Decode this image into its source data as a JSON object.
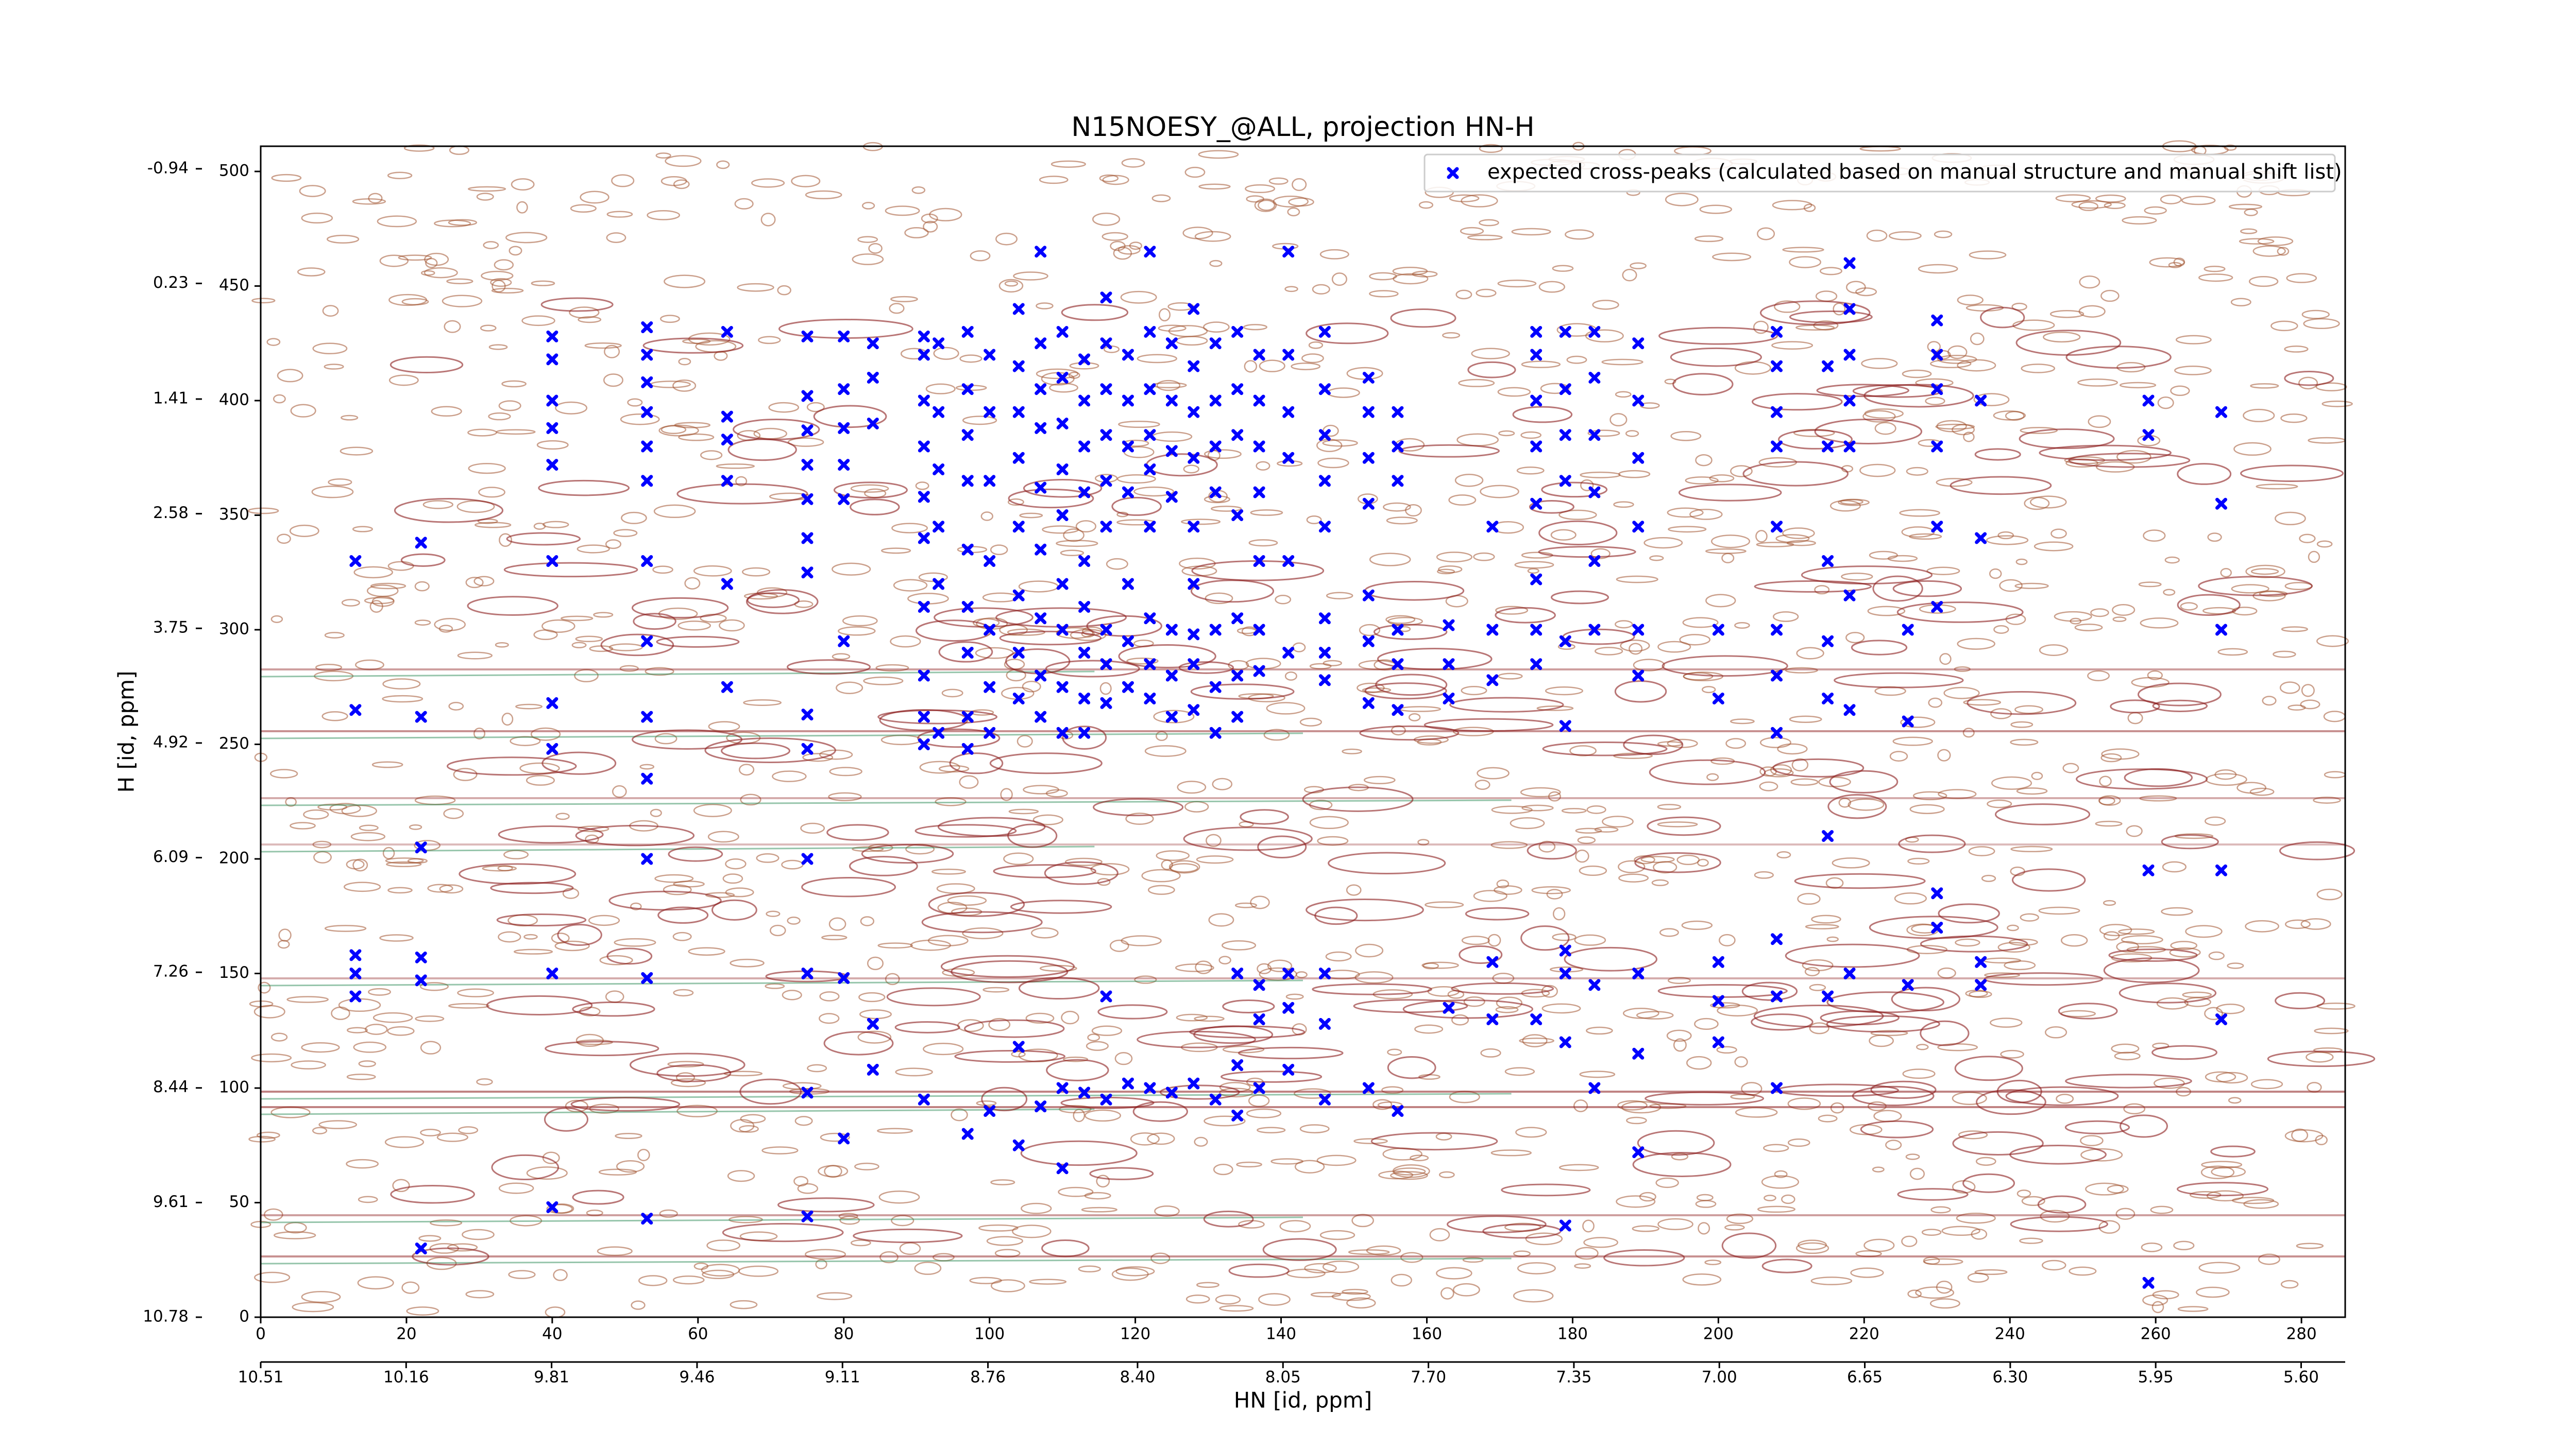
{
  "chart_data": {
    "type": "scatter",
    "title": "N15NOESY_@ALL, projection HN-H",
    "xlabel": "HN [id, ppm]",
    "ylabel": "H [id, ppm]",
    "xlim": [
      0,
      286
    ],
    "ylim": [
      0,
      511
    ],
    "xticks": [
      0,
      20,
      40,
      60,
      80,
      100,
      120,
      140,
      160,
      180,
      200,
      220,
      240,
      260,
      280
    ],
    "yticks": [
      0,
      50,
      100,
      150,
      200,
      250,
      300,
      350,
      400,
      450,
      500
    ],
    "x2lim": [
      10.51,
      5.494
    ],
    "x2ticks": [
      10.51,
      10.16,
      9.81,
      9.46,
      9.11,
      8.76,
      {
        "value": 8.4,
        "label": "8.40"
      },
      8.05,
      {
        "value": 7.7,
        "label": "7.70"
      },
      7.35,
      {
        "value": 7.0,
        "label": "7.00"
      },
      6.65,
      {
        "value": 6.3,
        "label": "6.30"
      },
      5.95,
      {
        "value": 5.6,
        "label": "5.60"
      }
    ],
    "y2lim": [
      10.78,
      -1.17
    ],
    "y2ticks": [
      10.78,
      9.61,
      8.44,
      7.26,
      6.09,
      4.92,
      3.75,
      2.58,
      1.41,
      0.23,
      -0.94
    ],
    "legend": "upper right",
    "series": [
      {
        "name": "expected cross-peaks (calculated based on manual structure and manual shift list)",
        "color": "#0000ff",
        "x": [
          13,
          13,
          13,
          13,
          13,
          22,
          22,
          22,
          22,
          22,
          22,
          40,
          40,
          40,
          40,
          40,
          40,
          40,
          40,
          40,
          40,
          53,
          53,
          53,
          53,
          53,
          53,
          53,
          53,
          53,
          53,
          53,
          53,
          53,
          64,
          64,
          64,
          64,
          64,
          64,
          75,
          75,
          75,
          75,
          75,
          75,
          75,
          75,
          75,
          75,
          75,
          75,
          75,
          80,
          80,
          80,
          80,
          80,
          80,
          80,
          80,
          84,
          84,
          84,
          84,
          84,
          91,
          91,
          91,
          91,
          91,
          91,
          91,
          91,
          91,
          91,
          91,
          93,
          93,
          93,
          93,
          93,
          93,
          97,
          97,
          97,
          97,
          97,
          97,
          97,
          97,
          97,
          97,
          100,
          100,
          100,
          100,
          100,
          100,
          100,
          100,
          104,
          104,
          104,
          104,
          104,
          104,
          104,
          104,
          104,
          104,
          107,
          107,
          107,
          107,
          107,
          107,
          107,
          107,
          107,
          107,
          110,
          110,
          110,
          110,
          110,
          110,
          110,
          110,
          110,
          110,
          110,
          113,
          113,
          113,
          113,
          113,
          113,
          113,
          113,
          113,
          113,
          116,
          116,
          116,
          116,
          116,
          116,
          116,
          116,
          116,
          116,
          116,
          119,
          119,
          119,
          119,
          119,
          119,
          119,
          119,
          122,
          122,
          122,
          122,
          122,
          122,
          122,
          122,
          122,
          122,
          125,
          125,
          125,
          125,
          125,
          125,
          125,
          125,
          128,
          128,
          128,
          128,
          128,
          128,
          128,
          128,
          128,
          128,
          131,
          131,
          131,
          131,
          131,
          131,
          131,
          131,
          134,
          134,
          134,
          134,
          134,
          134,
          134,
          134,
          134,
          134,
          137,
          137,
          137,
          137,
          137,
          137,
          137,
          137,
          137,
          137,
          141,
          141,
          141,
          141,
          141,
          141,
          141,
          141,
          141,
          146,
          146,
          146,
          146,
          146,
          146,
          146,
          146,
          146,
          146,
          146,
          152,
          152,
          152,
          152,
          152,
          152,
          152,
          152,
          156,
          156,
          156,
          156,
          156,
          156,
          156,
          163,
          163,
          163,
          163,
          169,
          169,
          169,
          169,
          169,
          175,
          175,
          175,
          175,
          175,
          175,
          175,
          175,
          175,
          179,
          179,
          179,
          179,
          179,
          179,
          179,
          179,
          179,
          179,
          183,
          183,
          183,
          183,
          183,
          183,
          183,
          183,
          189,
          189,
          189,
          189,
          189,
          189,
          189,
          189,
          189,
          200,
          200,
          200,
          200,
          200,
          208,
          208,
          208,
          208,
          208,
          208,
          208,
          208,
          208,
          208,
          208,
          215,
          215,
          215,
          215,
          215,
          215,
          215,
          218,
          218,
          218,
          218,
          218,
          218,
          218,
          218,
          226,
          226,
          226,
          230,
          230,
          230,
          230,
          230,
          230,
          230,
          230,
          236,
          236,
          236,
          236,
          259,
          259,
          259,
          259,
          269,
          269,
          269,
          269,
          269
        ],
        "values": [
          330,
          265,
          158,
          150,
          140,
          338,
          262,
          205,
          157,
          147,
          30,
          428,
          418,
          400,
          388,
          372,
          330,
          268,
          248,
          150,
          48,
          432,
          420,
          408,
          395,
          380,
          365,
          330,
          295,
          262,
          235,
          200,
          148,
          43,
          430,
          393,
          383,
          365,
          320,
          275,
          428,
          402,
          387,
          372,
          357,
          340,
          325,
          263,
          248,
          200,
          150,
          98,
          44,
          428,
          405,
          388,
          372,
          357,
          295,
          148,
          78,
          425,
          410,
          390,
          128,
          108,
          428,
          420,
          400,
          380,
          358,
          340,
          310,
          280,
          262,
          250,
          95,
          425,
          395,
          370,
          345,
          320,
          255,
          430,
          405,
          385,
          365,
          335,
          310,
          290,
          262,
          248,
          80,
          420,
          395,
          365,
          330,
          300,
          275,
          255,
          90,
          440,
          415,
          395,
          375,
          345,
          315,
          290,
          270,
          118,
          75,
          465,
          425,
          405,
          388,
          362,
          335,
          305,
          280,
          262,
          92,
          430,
          410,
          390,
          370,
          350,
          320,
          300,
          275,
          255,
          100,
          65,
          418,
          400,
          380,
          360,
          330,
          310,
          290,
          270,
          255,
          98,
          445,
          425,
          405,
          385,
          365,
          345,
          300,
          285,
          268,
          140,
          95,
          420,
          400,
          380,
          360,
          320,
          295,
          275,
          102,
          465,
          430,
          405,
          385,
          370,
          345,
          305,
          285,
          270,
          100,
          425,
          400,
          378,
          358,
          300,
          280,
          262,
          98,
          440,
          415,
          395,
          375,
          345,
          320,
          298,
          285,
          265,
          102,
          425,
          400,
          380,
          360,
          300,
          275,
          255,
          95,
          430,
          405,
          385,
          350,
          305,
          280,
          262,
          150,
          110,
          88,
          420,
          400,
          380,
          360,
          330,
          300,
          282,
          145,
          130,
          100,
          465,
          420,
          395,
          375,
          330,
          290,
          150,
          135,
          108,
          430,
          405,
          385,
          365,
          345,
          305,
          290,
          278,
          150,
          128,
          95,
          410,
          395,
          375,
          355,
          315,
          295,
          268,
          100,
          395,
          380,
          365,
          300,
          285,
          265,
          90,
          302,
          285,
          270,
          135,
          345,
          300,
          278,
          155,
          130,
          430,
          420,
          400,
          380,
          355,
          322,
          300,
          285,
          130,
          430,
          405,
          385,
          365,
          295,
          258,
          160,
          150,
          120,
          40,
          430,
          410,
          385,
          360,
          330,
          300,
          145,
          100,
          425,
          400,
          375,
          345,
          300,
          280,
          150,
          115,
          72,
          300,
          270,
          155,
          138,
          120,
          430,
          415,
          395,
          380,
          345,
          300,
          280,
          255,
          165,
          140,
          100,
          415,
          380,
          330,
          295,
          270,
          210,
          140,
          460,
          440,
          420,
          400,
          380,
          315,
          265,
          150,
          300,
          260,
          145,
          435,
          420,
          405,
          380,
          345,
          310,
          185,
          170,
          400,
          340,
          155,
          145,
          400,
          385,
          195,
          15,
          395,
          355,
          300,
          195,
          130
        ]
      }
    ]
  }
}
